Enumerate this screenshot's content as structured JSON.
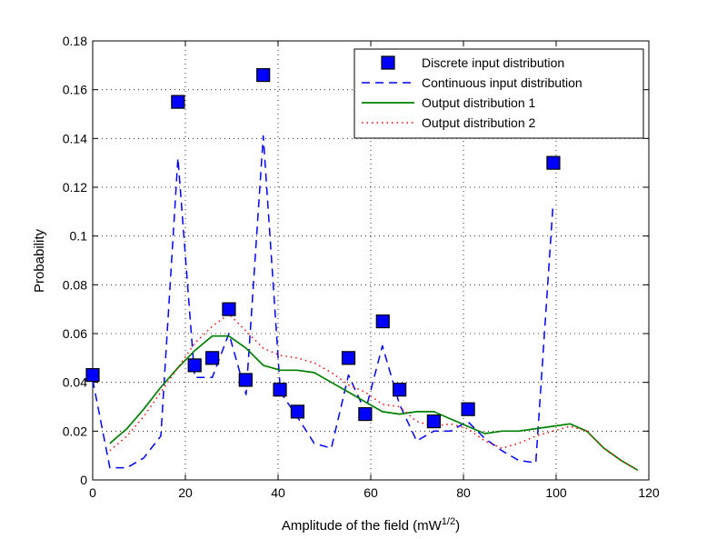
{
  "chart_data": {
    "type": "line",
    "title": "",
    "xlabel": "Amplitude of the field (mW",
    "xlabel_sup": "1/2",
    "xlabel_end": ")",
    "ylabel": "Probability",
    "xlim": [
      0,
      120
    ],
    "ylim": [
      0,
      0.18
    ],
    "grid": true,
    "x_ticks": [
      0,
      20,
      40,
      60,
      80,
      100,
      120
    ],
    "y_ticks": [
      0,
      0.02,
      0.04,
      0.06,
      0.08,
      0.1,
      0.12,
      0.14,
      0.16,
      0.18
    ],
    "x_tick_labels": [
      "0",
      "20",
      "40",
      "60",
      "80",
      "100",
      "120"
    ],
    "y_tick_labels": [
      "0",
      "0.02",
      "0.04",
      "0.06",
      "0.08",
      "0.1",
      "0.12",
      "0.14",
      "0.16",
      "0.18"
    ],
    "legend_position": "top-right",
    "series": [
      {
        "name": "Discrete input distribution",
        "style": "square-marker",
        "color": "#0000ff",
        "x": [
          0,
          18.4,
          22,
          25.8,
          29.4,
          33,
          36.8,
          40.4,
          44.2,
          55.2,
          58.8,
          62.6,
          66.2,
          73.6,
          81,
          99.4
        ],
        "y": [
          0.043,
          0.155,
          0.047,
          0.05,
          0.07,
          0.041,
          0.166,
          0.037,
          0.028,
          0.05,
          0.027,
          0.065,
          0.037,
          0.024,
          0.029,
          0.13
        ]
      },
      {
        "name": "Continuous input distribution",
        "style": "dashed",
        "color": "#0000ff",
        "x": [
          0,
          3.7,
          7.4,
          11,
          14.7,
          18.4,
          22,
          25.8,
          29.4,
          33.1,
          36.8,
          40.5,
          44.1,
          47.8,
          51.5,
          55.2,
          58.8,
          62.5,
          66.2,
          69.9,
          73.6,
          77.2,
          80.9,
          84.6,
          88.3,
          91.9,
          95.6,
          99.3
        ],
        "y": [
          0.041,
          0.005,
          0.005,
          0.009,
          0.018,
          0.132,
          0.042,
          0.042,
          0.06,
          0.035,
          0.141,
          0.036,
          0.026,
          0.015,
          0.013,
          0.043,
          0.028,
          0.055,
          0.031,
          0.016,
          0.02,
          0.02,
          0.024,
          0.017,
          0.012,
          0.008,
          0.007,
          0.112
        ]
      },
      {
        "name": "Output distribution 1",
        "style": "solid",
        "color": "#008000",
        "x": [
          3.7,
          7.4,
          11,
          14.7,
          18.4,
          22,
          25.8,
          29.4,
          33.1,
          36.8,
          40.5,
          44.1,
          47.8,
          51.5,
          55.2,
          58.8,
          62.5,
          66.2,
          69.9,
          73.6,
          77.2,
          80.9,
          84.6,
          88.3,
          91.9,
          95.6,
          99.3,
          103,
          106.6,
          110.3,
          114,
          117.6
        ],
        "y": [
          0.015,
          0.021,
          0.029,
          0.038,
          0.046,
          0.053,
          0.059,
          0.059,
          0.054,
          0.047,
          0.045,
          0.045,
          0.044,
          0.04,
          0.036,
          0.032,
          0.028,
          0.027,
          0.028,
          0.028,
          0.025,
          0.022,
          0.019,
          0.02,
          0.02,
          0.021,
          0.022,
          0.023,
          0.02,
          0.013,
          0.008,
          0.004
        ]
      },
      {
        "name": "Output distribution 2",
        "style": "dotted",
        "color": "#ff0000",
        "x": [
          3.7,
          7.4,
          11,
          14.7,
          18.4,
          22,
          25.8,
          29.4,
          33.1,
          36.8,
          40.5,
          44.1,
          47.8,
          51.5,
          55.2,
          58.8,
          62.5,
          66.2,
          69.9,
          73.6,
          77.2,
          80.9,
          84.6,
          88.3,
          91.9,
          95.6,
          99.3,
          103,
          106.6,
          110.3,
          114,
          117.6
        ],
        "y": [
          0.012,
          0.018,
          0.026,
          0.036,
          0.046,
          0.056,
          0.063,
          0.068,
          0.061,
          0.054,
          0.051,
          0.05,
          0.048,
          0.044,
          0.039,
          0.036,
          0.031,
          0.03,
          0.024,
          0.022,
          0.023,
          0.021,
          0.016,
          0.013,
          0.015,
          0.018,
          0.02,
          0.022,
          0.02,
          0.013,
          0.008,
          0.004
        ]
      }
    ]
  }
}
